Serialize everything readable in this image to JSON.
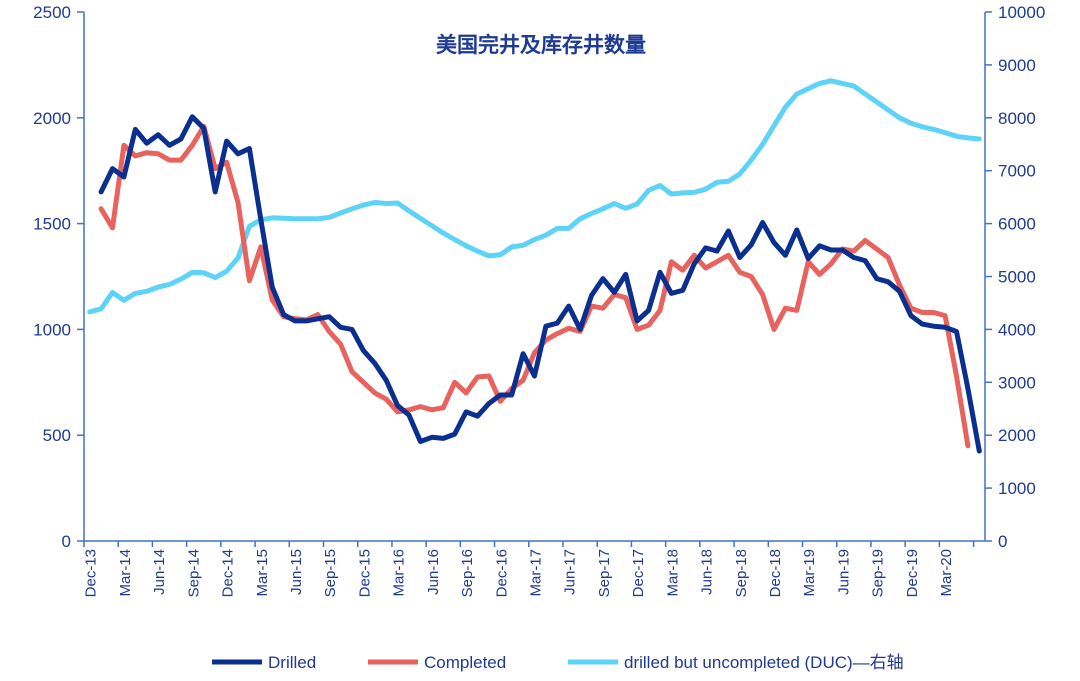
{
  "chart_data": {
    "type": "line",
    "title": "美国完井及库存井数量",
    "xlabel": "",
    "ylabel": "",
    "ylim": [
      0,
      2500
    ],
    "y2lim": [
      0,
      10000
    ],
    "yticks": [
      "0",
      "500",
      "1000",
      "1500",
      "2000",
      "2500"
    ],
    "y2ticks": [
      "0",
      "1000",
      "2000",
      "3000",
      "4000",
      "5000",
      "6000",
      "7000",
      "8000",
      "9000",
      "10000"
    ],
    "xticks": [
      "Dec-13",
      "Mar-14",
      "Jun-14",
      "Sep-14",
      "Dec-14",
      "Mar-15",
      "Jun-15",
      "Sep-15",
      "Dec-15",
      "Mar-16",
      "Jun-16",
      "Sep-16",
      "Dec-16",
      "Mar-17",
      "Jun-17",
      "Sep-17",
      "Dec-17",
      "Mar-18",
      "Jun-18",
      "Sep-18",
      "Dec-18",
      "Mar-19",
      "Jun-19",
      "Sep-19",
      "Dec-19",
      "Mar-20"
    ],
    "x_start": "Dec-13",
    "series": [
      {
        "name": "Drilled",
        "axis": "left",
        "color": "#0b2f8f",
        "start_index": 1,
        "values": [
          1650,
          1760,
          1720,
          1945,
          1880,
          1920,
          1870,
          1900,
          2005,
          1950,
          1650,
          1890,
          1830,
          1855,
          1520,
          1200,
          1070,
          1040,
          1040,
          1050,
          1060,
          1010,
          1000,
          900,
          840,
          760,
          640,
          595,
          470,
          490,
          485,
          505,
          610,
          590,
          650,
          690,
          690,
          885,
          780,
          1015,
          1030,
          1110,
          1000,
          1160,
          1240,
          1175,
          1260,
          1040,
          1090,
          1270,
          1170,
          1185,
          1310,
          1385,
          1370,
          1465,
          1340,
          1400,
          1505,
          1410,
          1350,
          1470,
          1335,
          1395,
          1375,
          1375,
          1340,
          1325,
          1240,
          1225,
          1180,
          1065,
          1025,
          1015,
          1010,
          990,
          720,
          425
        ]
      },
      {
        "name": "Completed",
        "axis": "left",
        "color": "#e8625e",
        "start_index": 1,
        "values": [
          1570,
          1480,
          1870,
          1820,
          1835,
          1830,
          1800,
          1800,
          1870,
          1960,
          1760,
          1790,
          1600,
          1230,
          1390,
          1140,
          1060,
          1050,
          1045,
          1070,
          990,
          930,
          800,
          750,
          700,
          670,
          610,
          620,
          635,
          620,
          630,
          750,
          700,
          775,
          780,
          660,
          720,
          760,
          890,
          950,
          980,
          1005,
          990,
          1110,
          1100,
          1165,
          1150,
          1000,
          1020,
          1090,
          1320,
          1280,
          1350,
          1290,
          1320,
          1350,
          1270,
          1250,
          1165,
          1000,
          1100,
          1090,
          1320,
          1260,
          1310,
          1380,
          1370,
          1420,
          1380,
          1340,
          1210,
          1100,
          1080,
          1080,
          1065,
          780,
          450
        ]
      },
      {
        "name": "drilled but uncompleted (DUC)—右轴",
        "axis": "right",
        "color": "#5dd3f7",
        "start_index": 0,
        "values": [
          4330,
          4390,
          4700,
          4550,
          4680,
          4720,
          4800,
          4850,
          4950,
          5080,
          5070,
          4980,
          5100,
          5350,
          5950,
          6070,
          6110,
          6100,
          6090,
          6090,
          6090,
          6120,
          6200,
          6280,
          6350,
          6400,
          6380,
          6390,
          6240,
          6100,
          5960,
          5820,
          5700,
          5580,
          5480,
          5390,
          5410,
          5560,
          5590,
          5700,
          5780,
          5910,
          5910,
          6090,
          6190,
          6280,
          6380,
          6290,
          6370,
          6630,
          6720,
          6560,
          6580,
          6590,
          6650,
          6780,
          6800,
          6940,
          7200,
          7500,
          7850,
          8200,
          8450,
          8550,
          8650,
          8700,
          8650,
          8600,
          8450,
          8300,
          8150,
          8000,
          7900,
          7830,
          7780,
          7720,
          7650,
          7620,
          7600
        ]
      }
    ],
    "legend": [
      "Drilled",
      "Completed",
      "drilled but uncompleted (DUC)—右轴"
    ],
    "legend_position": "bottom",
    "grid": false
  }
}
